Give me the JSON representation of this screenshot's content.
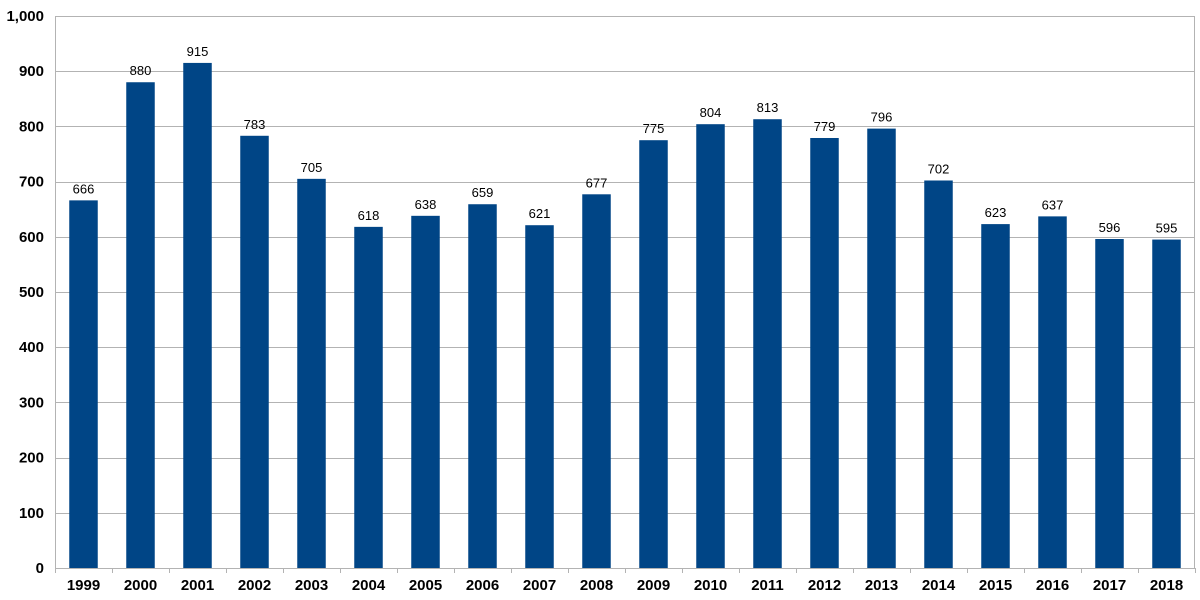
{
  "chart_data": {
    "type": "bar",
    "title": "",
    "xlabel": "",
    "ylabel": "",
    "categories": [
      "1999",
      "2000",
      "2001",
      "2002",
      "2003",
      "2004",
      "2005",
      "2006",
      "2007",
      "2008",
      "2009",
      "2010",
      "2011",
      "2012",
      "2013",
      "2014",
      "2015",
      "2016",
      "2017",
      "2018"
    ],
    "values": [
      666,
      880,
      915,
      783,
      705,
      618,
      638,
      659,
      621,
      677,
      775,
      804,
      813,
      779,
      796,
      702,
      623,
      637,
      596,
      595
    ],
    "data_labels": [
      "666",
      "880",
      "915",
      "783",
      "705",
      "618",
      "638",
      "659",
      "621",
      "677",
      "775",
      "804",
      "813",
      "779",
      "796",
      "702",
      "623",
      "637",
      "596",
      "595"
    ],
    "ylim": [
      0,
      1000
    ],
    "yticks": [
      0,
      100,
      200,
      300,
      400,
      500,
      600,
      700,
      800,
      900,
      1000
    ],
    "ytick_labels": [
      "0",
      "100",
      "200",
      "300",
      "400",
      "500",
      "600",
      "700",
      "800",
      "900",
      "1,000"
    ],
    "grid": true,
    "legend": "none",
    "bar_color": "#004586"
  }
}
